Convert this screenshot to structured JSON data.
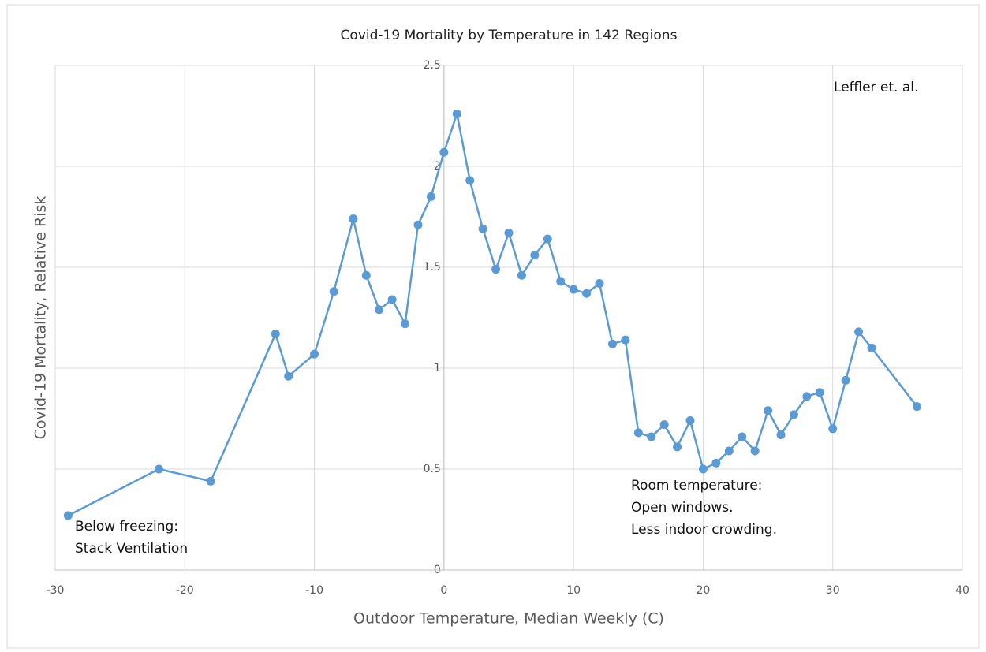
{
  "chart_data": {
    "type": "line",
    "title": "Covid-19 Mortality by Temperature in 142 Regions",
    "x_label": "Outdoor Temperature, Median Weekly (C)",
    "y_label": "Covid-19 Mortality, Relative Risk",
    "x": [
      -29,
      -22,
      -18,
      -13,
      -12,
      -10,
      -8.5,
      -7,
      -6,
      -5,
      -4,
      -3,
      -2,
      -1,
      0,
      1,
      2,
      3,
      4,
      5,
      6,
      7,
      8,
      9,
      10,
      11,
      12,
      13,
      14,
      15,
      16,
      17,
      18,
      19,
      20,
      21,
      22,
      23,
      24,
      25,
      26,
      27,
      28,
      29,
      30,
      31,
      32,
      33,
      36.5
    ],
    "series": [
      {
        "name": "Relative Risk",
        "color": "#5b9bd5",
        "values": [
          0.27,
          0.5,
          0.44,
          1.17,
          0.96,
          1.07,
          1.38,
          1.74,
          1.46,
          1.29,
          1.34,
          1.22,
          1.71,
          1.85,
          2.07,
          2.26,
          1.93,
          1.69,
          1.49,
          1.67,
          1.46,
          1.56,
          1.64,
          1.43,
          1.39,
          1.37,
          1.42,
          1.12,
          1.14,
          0.68,
          0.66,
          0.72,
          0.61,
          0.74,
          0.5,
          0.53,
          0.59,
          0.66,
          0.59,
          0.79,
          0.67,
          0.77,
          0.86,
          0.88,
          0.7,
          0.94,
          1.18,
          1.1,
          0.81
        ]
      }
    ],
    "xlim": [
      -30,
      40
    ],
    "xticks": [
      -30,
      -20,
      -10,
      0,
      10,
      20,
      30,
      40
    ],
    "ylim": [
      0,
      2.5
    ],
    "yticks": [
      0,
      0.5,
      1,
      1.5,
      2,
      2.5
    ],
    "grid": true,
    "annotations": [
      {
        "lines": [
          "Below freezing:",
          "Stack Ventilation"
        ]
      },
      {
        "lines": [
          "Room temperature:",
          "Open windows.",
          "Less indoor crowding."
        ]
      },
      {
        "lines": [
          "Leffler et. al."
        ]
      }
    ]
  }
}
